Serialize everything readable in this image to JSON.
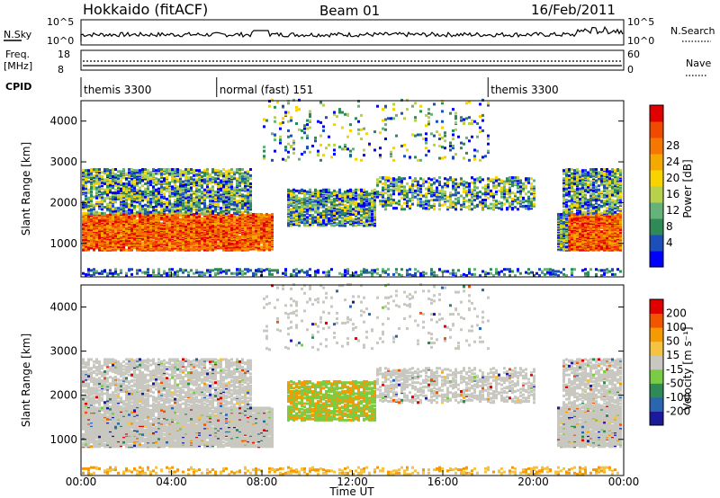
{
  "header": {
    "title": "Hokkaido (fitACF)",
    "beam": "Beam 01",
    "date": "16/Feb/2011"
  },
  "top_panel": {
    "nsky_label": "N.Sky",
    "nsky_top_tick": "10^5",
    "nsky_bottom_tick": "10^0",
    "nsearch_label": "N.Search",
    "nsearch_top_tick": "10^5",
    "nsearch_bottom_tick": "10^0",
    "freq_label": "Freq.",
    "freq_unit": "[MHz]",
    "freq_top_tick": "18",
    "freq_bottom_tick": "8",
    "nave_label": "Nave",
    "nave_top_tick": "60",
    "nave_bottom_tick": "0",
    "cpid_label": "CPID",
    "cpid_segments": [
      {
        "label": "themis 3300",
        "start_hour": 0,
        "end_hour": 6
      },
      {
        "label": "normal (fast) 151",
        "start_hour": 6,
        "end_hour": 18
      },
      {
        "label": "themis 3300",
        "start_hour": 18,
        "end_hour": 24
      }
    ]
  },
  "chart_data": [
    {
      "type": "heatmap",
      "name": "power-panel",
      "x_axis": {
        "range_hours": [
          0,
          24
        ],
        "ticks": [
          "00:00",
          "04:00",
          "08:00",
          "12:00",
          "16:00",
          "20:00",
          "00:00"
        ],
        "label": "Time UT"
      },
      "y_axis": {
        "label": "Slant Range [km]",
        "range_km": [
          180,
          4500
        ],
        "ticks": [
          1000,
          2000,
          3000,
          4000
        ]
      },
      "colorbar": {
        "label": "Power [dB]",
        "ticks": [
          "4",
          "8",
          "12",
          "16",
          "20",
          "24",
          "28"
        ],
        "colors": [
          "#0000ff",
          "#1d4fbb",
          "#2e8b57",
          "#66b37a",
          "#b8d14c",
          "#f7d300",
          "#f5a800",
          "#f57600",
          "#f04a00",
          "#e00000"
        ]
      }
    },
    {
      "type": "heatmap",
      "name": "velocity-panel",
      "x_axis": {
        "range_hours": [
          0,
          24
        ],
        "ticks": [
          "00:00",
          "04:00",
          "08:00",
          "12:00",
          "16:00",
          "20:00",
          "00:00"
        ],
        "label": "Time UT"
      },
      "y_axis": {
        "label": "Slant Range [km]",
        "range_km": [
          180,
          4500
        ],
        "ticks": [
          1000,
          2000,
          3000,
          4000
        ]
      },
      "colorbar": {
        "label": "Velocity [m s⁻¹]",
        "ticks": [
          "200",
          "100",
          "50",
          "15",
          "-15",
          "-50",
          "-100",
          "-200"
        ],
        "colors": [
          "#1a1a9a",
          "#2a66b0",
          "#2e8b57",
          "#7acc44",
          "#c8c8c0",
          "#f5c242",
          "#f59a00",
          "#f25500",
          "#e00000"
        ]
      }
    }
  ],
  "x_axis_title": "Time UT",
  "x_ticks": [
    "00:00",
    "04:00",
    "08:00",
    "12:00",
    "16:00",
    "20:00",
    "00:00"
  ],
  "y_title": "Slant Range [km]",
  "y_ticks": [
    "1000",
    "2000",
    "3000",
    "4000"
  ],
  "power_label": "Power [dB]",
  "velocity_label": "Velocity [m s⁻¹]"
}
